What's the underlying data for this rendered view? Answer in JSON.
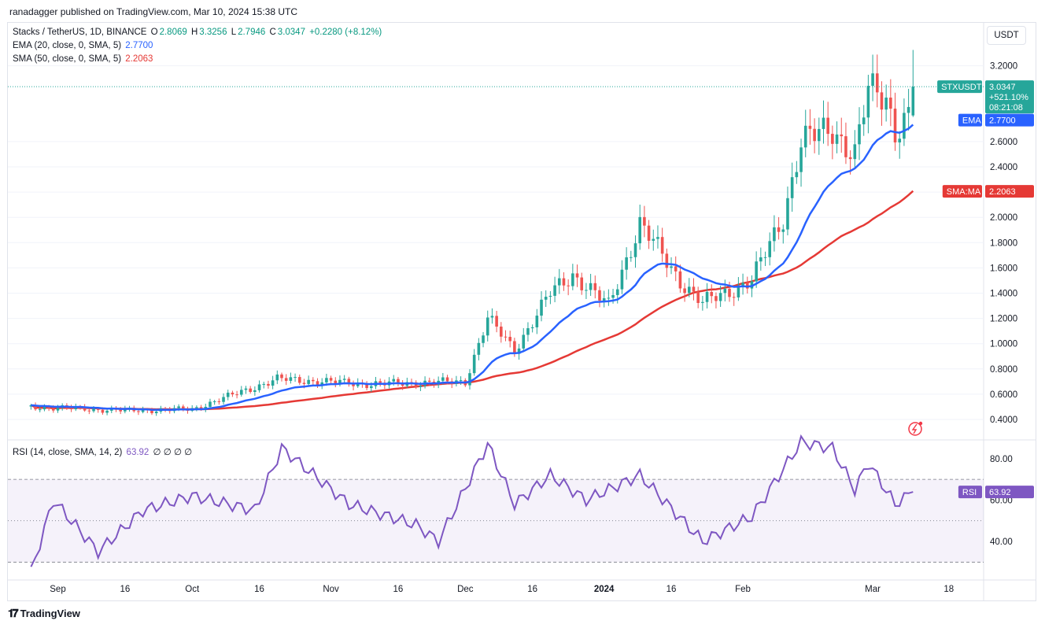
{
  "publisher": "ranadagger published on TradingView.com, Mar 10, 2024 15:38 UTC",
  "legend": {
    "symbol": "Stacks / TetherUS, 1D, BINANCE",
    "o_label": "O",
    "o": "2.8069",
    "h_label": "H",
    "h": "3.3256",
    "l_label": "L",
    "l": "2.7946",
    "c_label": "C",
    "c": "3.0347",
    "change": "+0.2280 (+8.12%)",
    "ema_label": "EMA (20, close, 0, SMA, 5)",
    "ema_value": "2.7700",
    "sma_label": "SMA (50, close, 0, SMA, 5)",
    "sma_value": "2.2063",
    "rsi_label": "RSI (14, close, SMA, 14, 2)",
    "rsi_value": "63.92",
    "rsi_extra": "∅ ∅ ∅ ∅"
  },
  "currency_button": "USDT",
  "price_tags": {
    "symbol": "STXUSDT",
    "price": "3.0347",
    "pct": "+521.10%",
    "countdown": "08:21:08",
    "ema_label": "EMA",
    "ema_value": "2.7700",
    "sma_label": "SMA:MA",
    "sma_value": "2.2063",
    "rsi_label": "RSI",
    "rsi_value": "63.92"
  },
  "colors": {
    "up": "#26a69a",
    "down": "#ef5350",
    "ema": "#2962ff",
    "sma": "#e53935",
    "rsi": "#7e57c2"
  },
  "footer_logo": "TradingView",
  "chart_data": [
    {
      "type": "candlestick",
      "title": "Stacks / TetherUS, 1D, BINANCE",
      "y_ticks": [
        "0.4000",
        "0.6000",
        "0.8000",
        "1.0000",
        "1.2000",
        "1.4000",
        "1.6000",
        "1.8000",
        "2.0000",
        "2.2000",
        "2.4000",
        "2.6000",
        "3.2000"
      ],
      "x_ticks": [
        "Sep",
        "16",
        "Oct",
        "16",
        "Nov",
        "16",
        "Dec",
        "16",
        "2024",
        "16",
        "Feb",
        "Mar",
        "18"
      ],
      "ylim": [
        0.3,
        3.4
      ],
      "last": {
        "open": 2.8069,
        "high": 3.3256,
        "low": 2.7946,
        "close": 3.0347
      },
      "key_points": [
        {
          "date": "Aug 26",
          "close": 0.5
        },
        {
          "date": "Sep 16",
          "close": 0.47
        },
        {
          "date": "Oct 1",
          "close": 0.48
        },
        {
          "date": "Oct 20",
          "close": 0.72
        },
        {
          "date": "Nov 10",
          "close": 0.68
        },
        {
          "date": "Dec 1",
          "close": 0.7
        },
        {
          "date": "Dec 6",
          "close": 1.2
        },
        {
          "date": "Dec 12",
          "close": 0.95
        },
        {
          "date": "Dec 20",
          "close": 1.4
        },
        {
          "date": "Dec 25",
          "close": 1.55
        },
        {
          "date": "Jan 2",
          "close": 1.3
        },
        {
          "date": "Jan 9",
          "close": 1.95
        },
        {
          "date": "Jan 18",
          "close": 1.5
        },
        {
          "date": "Jan 23",
          "close": 1.32
        },
        {
          "date": "Feb 3",
          "close": 1.5
        },
        {
          "date": "Feb 10",
          "close": 2.0
        },
        {
          "date": "Feb 14",
          "close": 2.6
        },
        {
          "date": "Feb 21",
          "close": 2.7
        },
        {
          "date": "Feb 26",
          "close": 2.5
        },
        {
          "date": "Feb 29",
          "close": 3.0
        },
        {
          "date": "Mar 4",
          "close": 2.95
        },
        {
          "date": "Mar 6",
          "close": 2.7
        },
        {
          "date": "Mar 9",
          "close": 2.81
        },
        {
          "date": "Mar 10",
          "close": 3.03
        }
      ],
      "ema_20_last": 2.77,
      "sma_50_last": 2.2063
    },
    {
      "type": "line",
      "title": "RSI (14, close, SMA, 14, 2)",
      "y_ticks": [
        "40.00",
        "60.00",
        "80.00"
      ],
      "bands": [
        30,
        70
      ],
      "key_points": [
        {
          "date": "Aug 26",
          "value": 25
        },
        {
          "date": "Aug 31",
          "value": 60
        },
        {
          "date": "Sep 10",
          "value": 35
        },
        {
          "date": "Sep 20",
          "value": 55
        },
        {
          "date": "Oct 1",
          "value": 62
        },
        {
          "date": "Oct 15",
          "value": 55
        },
        {
          "date": "Oct 21",
          "value": 85
        },
        {
          "date": "Nov 5",
          "value": 58
        },
        {
          "date": "Nov 20",
          "value": 48
        },
        {
          "date": "Nov 25",
          "value": 40
        },
        {
          "date": "Dec 6",
          "value": 87
        },
        {
          "date": "Dec 12",
          "value": 58
        },
        {
          "date": "Dec 20",
          "value": 72
        },
        {
          "date": "Dec 28",
          "value": 60
        },
        {
          "date": "Jan 9",
          "value": 72
        },
        {
          "date": "Jan 23",
          "value": 40
        },
        {
          "date": "Feb 3",
          "value": 52
        },
        {
          "date": "Feb 14",
          "value": 88
        },
        {
          "date": "Feb 21",
          "value": 85
        },
        {
          "date": "Feb 26",
          "value": 65
        },
        {
          "date": "Feb 29",
          "value": 78
        },
        {
          "date": "Mar 6",
          "value": 58
        },
        {
          "date": "Mar 10",
          "value": 63.92
        }
      ]
    }
  ]
}
